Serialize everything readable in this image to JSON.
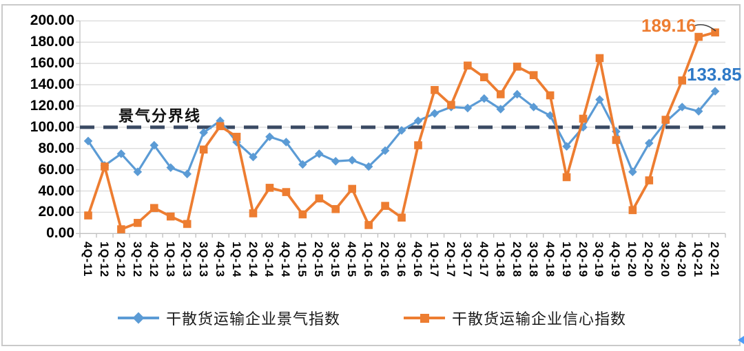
{
  "chart_data": {
    "type": "line",
    "title": "",
    "categories": [
      "4Q-11",
      "1Q-12",
      "2Q-12",
      "3Q-12",
      "4Q-12",
      "1Q-13",
      "2Q-13",
      "3Q-13",
      "4Q-13",
      "1Q-14",
      "2Q-14",
      "3Q-14",
      "4Q-14",
      "1Q-15",
      "2Q-15",
      "3Q-15",
      "4Q-15",
      "1Q-16",
      "2Q-16",
      "3Q-16",
      "4Q-16",
      "1Q-17",
      "2Q-17",
      "3Q-17",
      "4Q-17",
      "1Q-18",
      "2Q-18",
      "3Q-18",
      "4Q-18",
      "1Q-19",
      "2Q-19",
      "3Q-19",
      "4Q-19",
      "1Q-20",
      "2Q-20",
      "3Q-20",
      "4Q-20",
      "1Q-21",
      "2Q-21"
    ],
    "y_axis": {
      "min": 0,
      "max": 200,
      "step": 20,
      "tick_labels": [
        "200.00",
        "180.00",
        "160.00",
        "140.00",
        "120.00",
        "100.00",
        "80.00",
        "60.00",
        "40.00",
        "20.00",
        "0.00"
      ]
    },
    "series": [
      {
        "name": "干散货运输企业景气指数",
        "color": "#5b9bd5",
        "marker": "diamond",
        "values": [
          87,
          64,
          75,
          58,
          83,
          62,
          56,
          95,
          106,
          86,
          72,
          91,
          86,
          65,
          75,
          68,
          69,
          63,
          78,
          97,
          106,
          113,
          119,
          118,
          127,
          117,
          131,
          119,
          111,
          82,
          100,
          126,
          96,
          58,
          85,
          105,
          119,
          115,
          133.85
        ]
      },
      {
        "name": "干散货运输企业信心指数",
        "color": "#ed7d31",
        "marker": "square",
        "values": [
          17,
          63,
          4,
          10,
          24,
          16,
          9,
          79,
          101,
          91,
          19,
          43,
          39,
          18,
          33,
          23,
          42,
          8,
          26,
          15,
          83,
          135,
          121,
          158,
          147,
          131,
          157,
          149,
          130,
          53,
          108,
          165,
          88,
          22,
          50,
          107,
          144,
          185,
          189.16
        ]
      }
    ],
    "reference_line": {
      "label": "景气分界线",
      "value": 100,
      "color": "#3a4a63",
      "style": "dashed"
    },
    "annotations": [
      {
        "text": "189.16",
        "series": "干散货运输企业信心指数",
        "point": "2Q-21",
        "color": "#ed7d31"
      },
      {
        "text": "133.85",
        "series": "干散货运输企业景气指数",
        "point": "2Q-21",
        "color": "#2e79c7"
      }
    ],
    "grid": true,
    "legend_position": "bottom",
    "colors": {
      "gridline": "#d9d9d9",
      "axis": "#bfbfbf",
      "background": "#ffffff",
      "frame_border": "#c9c9c9"
    }
  }
}
